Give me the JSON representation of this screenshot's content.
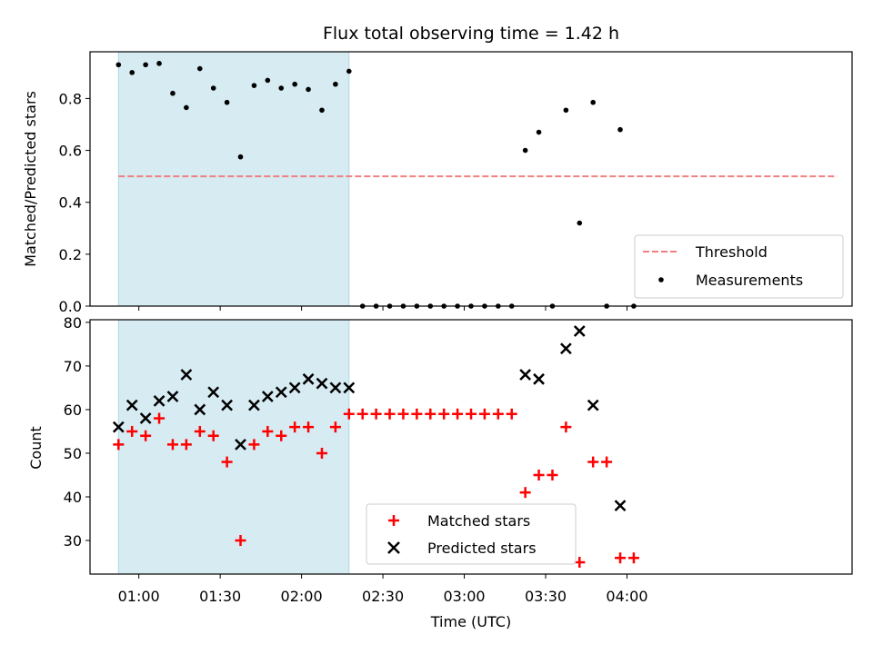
{
  "chart_data": [
    {
      "type": "scatter",
      "title": "Flux total observing time = 1.42 h",
      "xlabel": "",
      "ylabel": "Matched/Predicted stars",
      "x_unit": "minutes past 00:00 UTC",
      "xlim": [
        42,
        323
      ],
      "ylim": [
        0,
        0.98
      ],
      "yticks": [
        "0.0",
        "0.2",
        "0.4",
        "0.6",
        "0.8"
      ],
      "ytick_values": [
        0,
        0.2,
        0.4,
        0.6,
        0.8
      ],
      "xticks_labeled": false,
      "shaded_region": [
        52.5,
        137.5
      ],
      "threshold": {
        "name": "Threshold",
        "y": 0.5,
        "x_range": [
          52.5,
          317.5
        ],
        "color": "#f08080",
        "style": "dashed"
      },
      "series": [
        {
          "name": "Measurements",
          "marker": "dot",
          "color": "#000000",
          "points": [
            [
              52.5,
              0.93
            ],
            [
              57.5,
              0.9
            ],
            [
              62.5,
              0.93
            ],
            [
              67.5,
              0.935
            ],
            [
              72.5,
              0.82
            ],
            [
              77.5,
              0.765
            ],
            [
              82.5,
              0.915
            ],
            [
              87.5,
              0.84
            ],
            [
              92.5,
              0.785
            ],
            [
              97.5,
              0.575
            ],
            [
              102.5,
              0.85
            ],
            [
              107.5,
              0.87
            ],
            [
              112.5,
              0.84
            ],
            [
              117.5,
              0.855
            ],
            [
              122.5,
              0.835
            ],
            [
              127.5,
              0.755
            ],
            [
              132.5,
              0.855
            ],
            [
              137.5,
              0.905
            ],
            [
              142.5,
              0
            ],
            [
              147.5,
              0
            ],
            [
              152.5,
              0
            ],
            [
              157.5,
              0
            ],
            [
              162.5,
              0
            ],
            [
              167.5,
              0
            ],
            [
              172.5,
              0
            ],
            [
              177.5,
              0
            ],
            [
              182.5,
              0
            ],
            [
              187.5,
              0
            ],
            [
              192.5,
              0
            ],
            [
              197.5,
              0
            ],
            [
              202.5,
              0.6
            ],
            [
              207.5,
              0.67
            ],
            [
              212.5,
              0
            ],
            [
              217.5,
              0.755
            ],
            [
              222.5,
              0.32
            ],
            [
              227.5,
              0.785
            ],
            [
              232.5,
              0
            ],
            [
              237.5,
              0.68
            ],
            [
              242.5,
              0
            ]
          ]
        }
      ],
      "legend": {
        "position": "lower-right",
        "entries": [
          "Threshold",
          "Measurements"
        ]
      }
    },
    {
      "type": "scatter",
      "title": "",
      "xlabel": "Time (UTC)",
      "ylabel": "Count",
      "x_unit": "minutes past 00:00 UTC",
      "xlim": [
        42,
        323
      ],
      "ylim": [
        22.3,
        80.6
      ],
      "yticks": [
        "30",
        "40",
        "50",
        "60",
        "70",
        "80"
      ],
      "ytick_values": [
        30,
        40,
        50,
        60,
        70,
        80
      ],
      "xticks": [
        "01:00",
        "01:30",
        "02:00",
        "02:30",
        "03:00",
        "03:30",
        "04:00"
      ],
      "xtick_values": [
        60,
        90,
        120,
        150,
        180,
        210,
        240
      ],
      "shaded_region": [
        52.5,
        137.5
      ],
      "series": [
        {
          "name": "Matched stars",
          "marker": "plus",
          "color": "#ff0000",
          "points": [
            [
              52.5,
              52
            ],
            [
              57.5,
              55
            ],
            [
              62.5,
              54
            ],
            [
              67.5,
              58
            ],
            [
              72.5,
              52
            ],
            [
              77.5,
              52
            ],
            [
              82.5,
              55
            ],
            [
              87.5,
              54
            ],
            [
              92.5,
              48
            ],
            [
              97.5,
              30
            ],
            [
              102.5,
              52
            ],
            [
              107.5,
              55
            ],
            [
              112.5,
              54
            ],
            [
              117.5,
              56
            ],
            [
              122.5,
              56
            ],
            [
              127.5,
              50
            ],
            [
              132.5,
              56
            ],
            [
              137.5,
              59
            ],
            [
              142.5,
              59
            ],
            [
              147.5,
              59
            ],
            [
              152.5,
              59
            ],
            [
              157.5,
              59
            ],
            [
              162.5,
              59
            ],
            [
              167.5,
              59
            ],
            [
              172.5,
              59
            ],
            [
              177.5,
              59
            ],
            [
              182.5,
              59
            ],
            [
              187.5,
              59
            ],
            [
              192.5,
              59
            ],
            [
              197.5,
              59
            ],
            [
              202.5,
              41
            ],
            [
              207.5,
              45
            ],
            [
              212.5,
              45
            ],
            [
              217.5,
              56
            ],
            [
              222.5,
              25
            ],
            [
              227.5,
              48
            ],
            [
              232.5,
              48
            ],
            [
              237.5,
              26
            ],
            [
              242.5,
              26
            ]
          ]
        },
        {
          "name": "Predicted stars",
          "marker": "x",
          "color": "#000000",
          "points": [
            [
              52.5,
              56
            ],
            [
              57.5,
              61
            ],
            [
              62.5,
              58
            ],
            [
              67.5,
              62
            ],
            [
              72.5,
              63
            ],
            [
              77.5,
              68
            ],
            [
              82.5,
              60
            ],
            [
              87.5,
              64
            ],
            [
              92.5,
              61
            ],
            [
              97.5,
              52
            ],
            [
              102.5,
              61
            ],
            [
              107.5,
              63
            ],
            [
              112.5,
              64
            ],
            [
              117.5,
              65
            ],
            [
              122.5,
              67
            ],
            [
              127.5,
              66
            ],
            [
              132.5,
              65
            ],
            [
              137.5,
              65
            ],
            [
              202.5,
              68
            ],
            [
              207.5,
              67
            ],
            [
              217.5,
              74
            ],
            [
              222.5,
              78
            ],
            [
              227.5,
              61
            ],
            [
              237.5,
              38
            ]
          ]
        }
      ],
      "legend": {
        "position": "lower-center",
        "entries": [
          "Matched stars",
          "Predicted stars"
        ]
      }
    }
  ],
  "colors": {
    "shade": "#add8e6",
    "threshold": "#f08080",
    "matched": "#ff0000",
    "predicted": "#000000",
    "measurements": "#000000"
  }
}
